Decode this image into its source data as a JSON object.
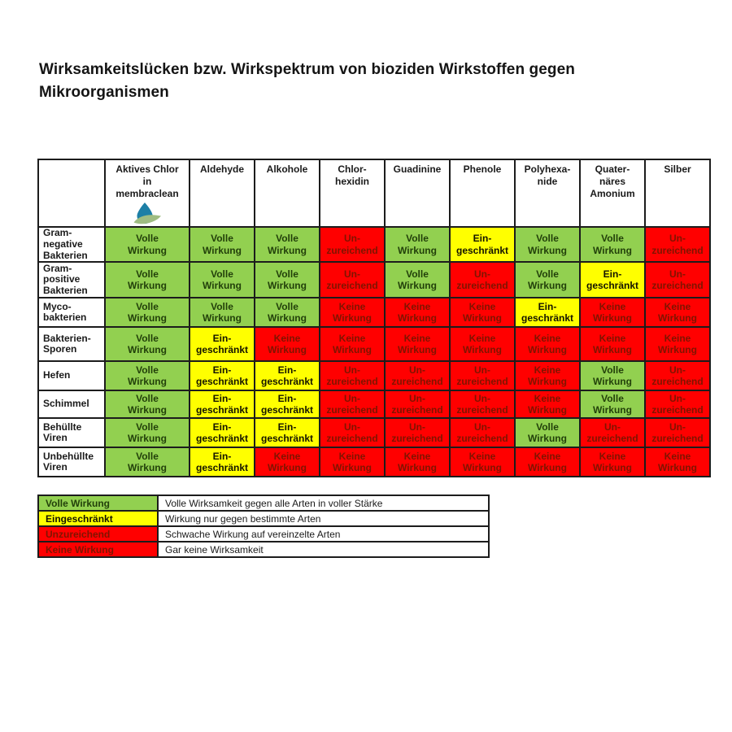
{
  "chart_data": {
    "type": "heatmap",
    "title": "Wirksamkeitslücken bzw. Wirkspektrum von bioziden Wirkstoffen gegen\nMikroorganismen",
    "status_labels": {
      "full": "Volle\nWirkung",
      "limited": "Ein-\ngeschränkt",
      "insufficient": "Un-\nzureichend",
      "none": "Keine\nWirkung"
    },
    "status_colors": {
      "full": "#92d050",
      "limited": "#ffff00",
      "insufficient": "#ff0000",
      "none": "#ff0000"
    },
    "status_text_colors": {
      "full": "#22400a",
      "limited": "#141400",
      "insufficient": "#7f1400",
      "none": "#7f1400"
    },
    "icon_colors": {
      "drop_blue": "#1d7fa6",
      "leaf_green": "#9fbd82"
    },
    "columns": [
      {
        "label": "Aktives Chlor\nin\nmembraclean",
        "icon": "membraclean-drop-leaf"
      },
      {
        "label": "Aldehyde"
      },
      {
        "label": "Alkohole"
      },
      {
        "label": "Chlor-\nhexidin"
      },
      {
        "label": "Guadinine"
      },
      {
        "label": "Phenole"
      },
      {
        "label": "Polyhexa-\nnide"
      },
      {
        "label": "Quater-\nnäres\nAmonium"
      },
      {
        "label": "Silber"
      }
    ],
    "rows": [
      {
        "label": "Gram-\nnegative\nBakterien",
        "cells": [
          "full",
          "full",
          "full",
          "insufficient",
          "full",
          "limited",
          "full",
          "full",
          "insufficient"
        ]
      },
      {
        "label": "Gram-\npositive\nBakterien",
        "cells": [
          "full",
          "full",
          "full",
          "insufficient",
          "full",
          "insufficient",
          "full",
          "limited",
          "insufficient"
        ]
      },
      {
        "label": "Myco-\nbakterien",
        "cells": [
          "full",
          "full",
          "full",
          "none",
          "none",
          "none",
          "limited",
          "none",
          "none"
        ]
      },
      {
        "label": "Bakterien-\nSporen",
        "cells": [
          "full",
          "limited",
          "none",
          "none",
          "none",
          "none",
          "none",
          "none",
          "none"
        ]
      },
      {
        "label": "Hefen",
        "cells": [
          "full",
          "limited",
          "limited",
          "insufficient",
          "insufficient",
          "insufficient",
          "none",
          "full",
          "insufficient"
        ]
      },
      {
        "label": "Schimmel",
        "cells": [
          "full",
          "limited",
          "limited",
          "insufficient",
          "insufficient",
          "insufficient",
          "none",
          "full",
          "insufficient"
        ]
      },
      {
        "label": "Behüllte\nViren",
        "cells": [
          "full",
          "limited",
          "limited",
          "insufficient",
          "insufficient",
          "insufficient",
          "full",
          "insufficient",
          "insufficient"
        ]
      },
      {
        "label": "Unbehüllte\nViren",
        "cells": [
          "full",
          "limited",
          "none",
          "none",
          "none",
          "none",
          "none",
          "none",
          "none"
        ]
      }
    ],
    "legend": [
      {
        "label": "Volle Wirkung",
        "status": "full",
        "description": "Volle Wirksamkeit gegen alle Arten in voller Stärke"
      },
      {
        "label": "Eingeschränkt",
        "status": "limited",
        "description": "Wirkung nur gegen bestimmte Arten"
      },
      {
        "label": "Unzureichend",
        "status": "insufficient",
        "description": "Schwache Wirkung auf vereinzelte Arten"
      },
      {
        "label": "Keine Wirkung",
        "status": "none",
        "description": "Gar keine Wirksamkeit"
      }
    ]
  }
}
